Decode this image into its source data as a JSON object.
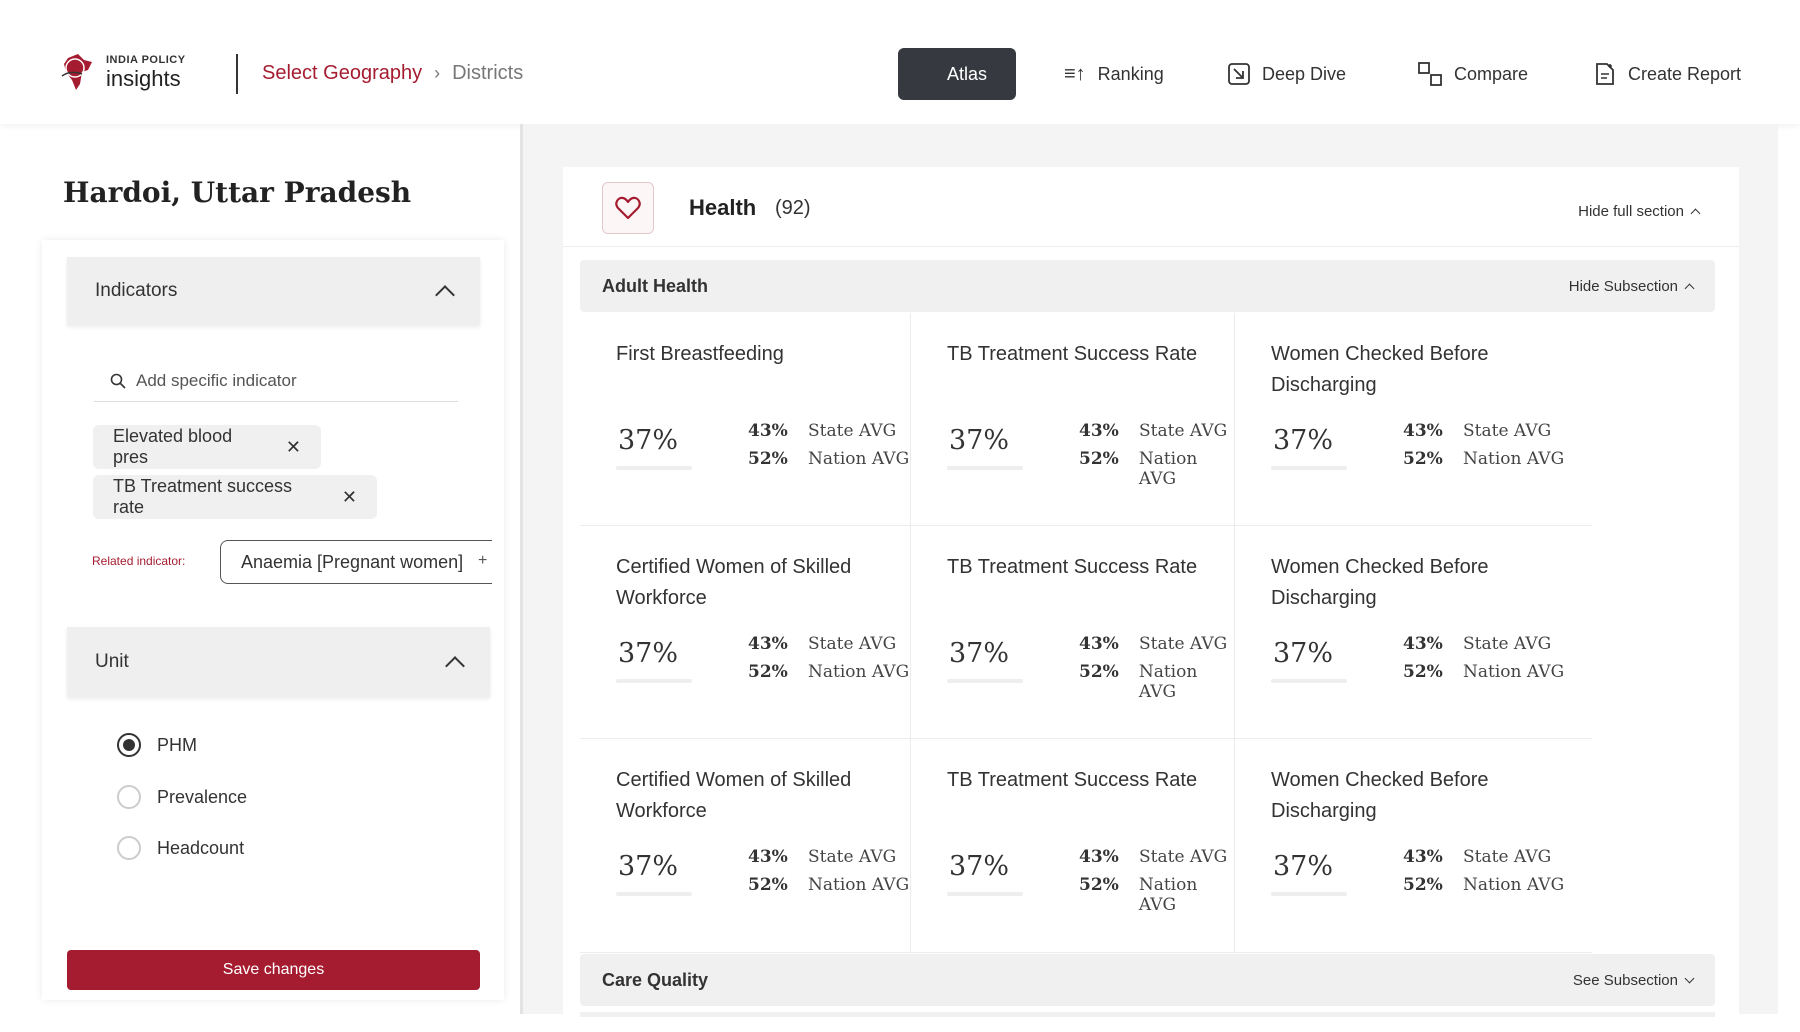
{
  "header": {
    "logo_small": "INDIA POLICY",
    "logo_big": "insights",
    "breadcrumb_geo": "Select Geography",
    "breadcrumb_current": "Districts",
    "nav": [
      {
        "label": "Atlas",
        "icon": "atlas-icon",
        "active": true
      },
      {
        "label": "Ranking",
        "icon": "ranking-icon"
      },
      {
        "label": "Deep Dive",
        "icon": "deep-dive-icon"
      },
      {
        "label": "Compare",
        "icon": "compare-icon"
      },
      {
        "label": "Create Report",
        "icon": "create-report-icon"
      }
    ]
  },
  "sidebar": {
    "district": "Hardoi, Uttar Pradesh",
    "indicators_label": "Indicators",
    "search_placeholder": "Add specific indicator",
    "chips": [
      "Elevated blood pres",
      "TB Treatment success rate"
    ],
    "related_label": "Related indicator:",
    "related_value": "Anaemia [Pregnant women]",
    "unit_label": "Unit",
    "units": [
      {
        "label": "PHM",
        "selected": true
      },
      {
        "label": "Prevalence",
        "selected": false
      },
      {
        "label": "Headcount",
        "selected": false
      }
    ],
    "save_label": "Save changes"
  },
  "section": {
    "title": "Health",
    "count": "(92)",
    "hide_full": "Hide full section",
    "subsections": [
      {
        "title": "Adult Health",
        "action": "Hide Subsection"
      },
      {
        "title": "Care Quality",
        "action": "See Subsection"
      }
    ],
    "cards": [
      {
        "title": "First Breastfeeding",
        "value": "37%",
        "state_val": "43%",
        "state_label": "State AVG",
        "nation_val": "52%",
        "nation_label": "Nation AVG"
      },
      {
        "title": "TB Treatment Success Rate",
        "value": "37%",
        "state_val": "43%",
        "state_label": "State AVG",
        "nation_val": "52%",
        "nation_label": "Nation AVG"
      },
      {
        "title": "Women Checked Before Discharging",
        "value": "37%",
        "state_val": "43%",
        "state_label": "State AVG",
        "nation_val": "52%",
        "nation_label": "Nation AVG"
      },
      {
        "title": "Certified Women of Skilled Workforce",
        "value": "37%",
        "state_val": "43%",
        "state_label": "State AVG",
        "nation_val": "52%",
        "nation_label": "Nation AVG"
      },
      {
        "title": "TB Treatment Success Rate",
        "value": "37%",
        "state_val": "43%",
        "state_label": "State AVG",
        "nation_val": "52%",
        "nation_label": "Nation AVG"
      },
      {
        "title": "Women Checked Before Discharging",
        "value": "37%",
        "state_val": "43%",
        "state_label": "State AVG",
        "nation_val": "52%",
        "nation_label": "Nation AVG"
      },
      {
        "title": "Certified Women of Skilled Workforce",
        "value": "37%",
        "state_val": "43%",
        "state_label": "State AVG",
        "nation_val": "52%",
        "nation_label": "Nation AVG"
      },
      {
        "title": "TB Treatment Success Rate",
        "value": "37%",
        "state_val": "43%",
        "state_label": "State AVG",
        "nation_val": "52%",
        "nation_label": "Nation AVG"
      },
      {
        "title": "Women Checked Before Discharging",
        "value": "37%",
        "state_val": "43%",
        "state_label": "State AVG",
        "nation_val": "52%",
        "nation_label": "Nation AVG"
      }
    ]
  },
  "colors": {
    "brand": "#a51c30",
    "dark": "#363a40"
  }
}
